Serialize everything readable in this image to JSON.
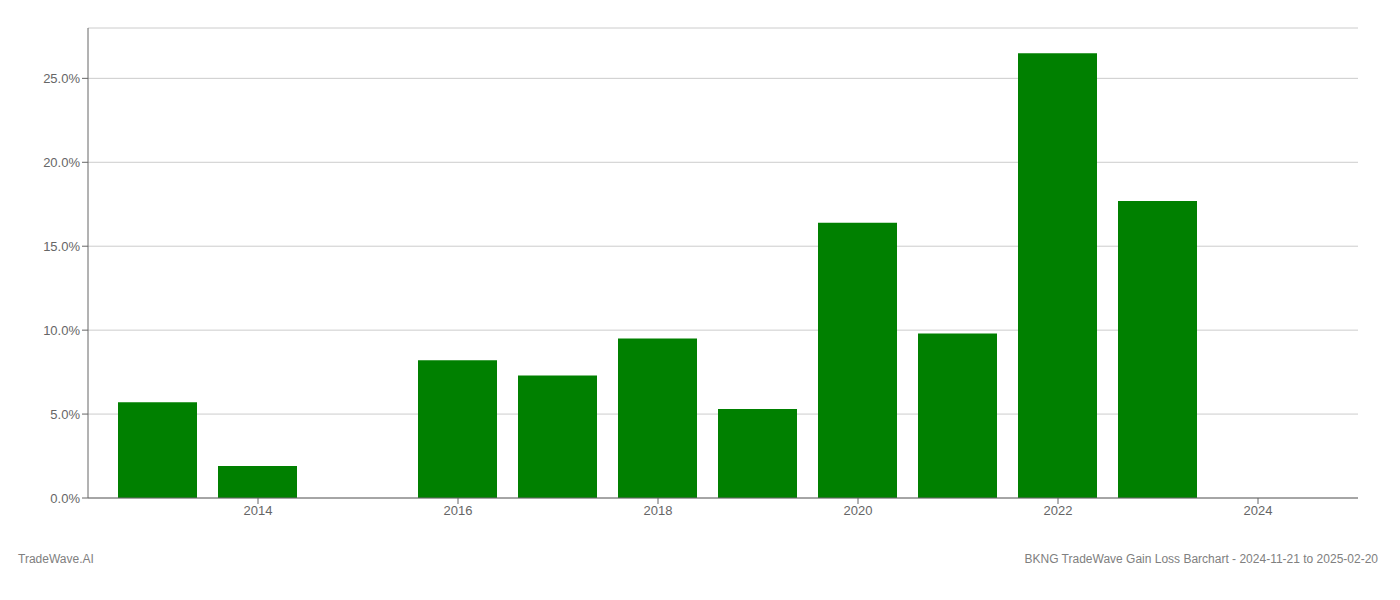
{
  "chart_data": {
    "type": "bar",
    "x": [
      2013,
      2014,
      2015,
      2016,
      2017,
      2018,
      2019,
      2020,
      2021,
      2022,
      2023
    ],
    "values": [
      0.057,
      0.019,
      0.0,
      0.082,
      0.073,
      0.095,
      0.053,
      0.164,
      0.098,
      0.265,
      0.177
    ],
    "color": "#008000",
    "xlim": [
      2012.3,
      2025.0
    ],
    "xticks": [
      2014,
      2016,
      2018,
      2020,
      2022,
      2024
    ],
    "ylim": [
      0,
      0.28
    ],
    "yticks": [
      {
        "value": 0.0,
        "label": "0.0%"
      },
      {
        "value": 0.05,
        "label": "5.0%"
      },
      {
        "value": 0.1,
        "label": "10.0%"
      },
      {
        "value": 0.15,
        "label": "15.0%"
      },
      {
        "value": 0.2,
        "label": "20.0%"
      },
      {
        "value": 0.25,
        "label": "25.0%"
      }
    ],
    "grid": true,
    "annotations": [
      "TradeWave.AI",
      "BKNG TradeWave Gain Loss Barchart - 2024-11-21 to 2025-02-20"
    ]
  }
}
